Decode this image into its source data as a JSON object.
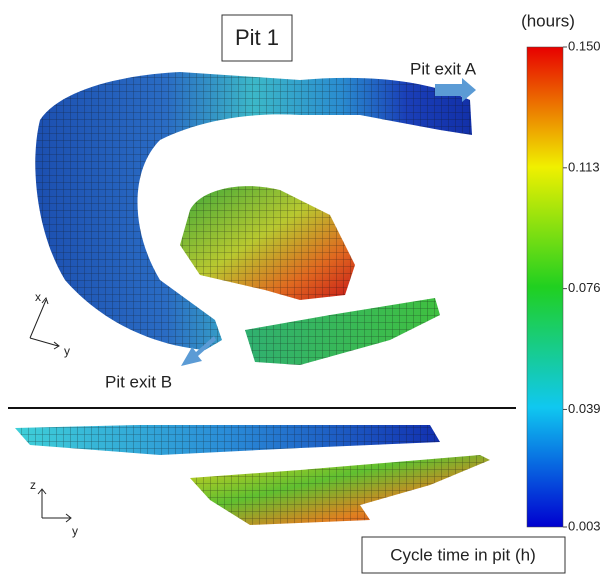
{
  "title": "Pit 1",
  "labels": {
    "exit_a": "Pit exit A",
    "exit_b": "Pit exit B"
  },
  "axes": {
    "top": {
      "x": "x",
      "y": "y"
    },
    "bottom": {
      "z": "z",
      "y": "y"
    }
  },
  "colorbar": {
    "unit": "(hours)",
    "range": [
      0.003,
      0.15
    ],
    "ticks": [
      {
        "value": 0.15,
        "label": "0.150"
      },
      0.113,
      0.076,
      0.039,
      0.003
    ],
    "caption": "Cycle time in pit (h)"
  }
}
